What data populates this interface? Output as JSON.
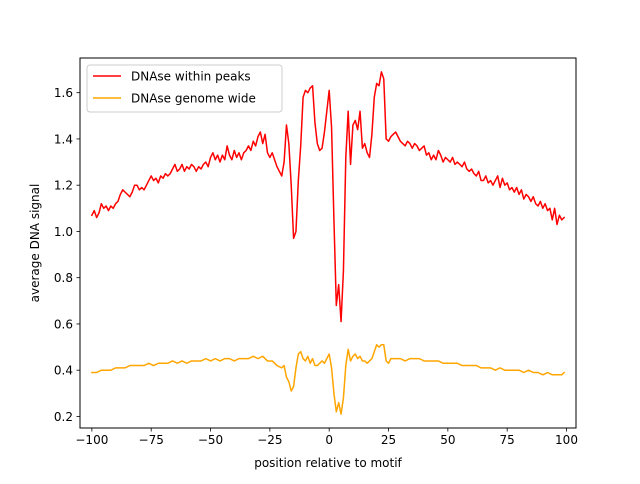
{
  "chart_data": {
    "type": "line",
    "title": "",
    "xlabel": "position relative to motif",
    "ylabel": "average DNA signal",
    "xlim": [
      -105,
      104
    ],
    "ylim": [
      0.15,
      1.75
    ],
    "xticks": [
      -100,
      -75,
      -50,
      -25,
      0,
      25,
      50,
      75,
      100
    ],
    "xtick_labels": [
      "−100",
      "−75",
      "−50",
      "−25",
      "0",
      "25",
      "50",
      "75",
      "100"
    ],
    "yticks": [
      0.2,
      0.4,
      0.6,
      0.8,
      1.0,
      1.2,
      1.4,
      1.6
    ],
    "ytick_labels": [
      "0.2",
      "0.4",
      "0.6",
      "0.8",
      "1.0",
      "1.2",
      "1.4",
      "1.6"
    ],
    "grid": false,
    "legend_position": "top-left",
    "series": [
      {
        "name": "DNAse within peaks",
        "color": "#ff0000",
        "points": [
          [
            -100,
            1.07
          ],
          [
            -99,
            1.09
          ],
          [
            -98,
            1.06
          ],
          [
            -97,
            1.08
          ],
          [
            -96,
            1.12
          ],
          [
            -95,
            1.1
          ],
          [
            -94,
            1.11
          ],
          [
            -93,
            1.09
          ],
          [
            -92,
            1.11
          ],
          [
            -91,
            1.1
          ],
          [
            -90,
            1.12
          ],
          [
            -89,
            1.13
          ],
          [
            -88,
            1.16
          ],
          [
            -87,
            1.18
          ],
          [
            -86,
            1.17
          ],
          [
            -85,
            1.16
          ],
          [
            -84,
            1.15
          ],
          [
            -83,
            1.17
          ],
          [
            -82,
            1.2
          ],
          [
            -81,
            1.2
          ],
          [
            -80,
            1.18
          ],
          [
            -79,
            1.19
          ],
          [
            -78,
            1.18
          ],
          [
            -77,
            1.2
          ],
          [
            -76,
            1.22
          ],
          [
            -75,
            1.24
          ],
          [
            -74,
            1.22
          ],
          [
            -73,
            1.23
          ],
          [
            -72,
            1.21
          ],
          [
            -71,
            1.24
          ],
          [
            -70,
            1.23
          ],
          [
            -69,
            1.25
          ],
          [
            -68,
            1.24
          ],
          [
            -67,
            1.25
          ],
          [
            -66,
            1.27
          ],
          [
            -65,
            1.29
          ],
          [
            -64,
            1.26
          ],
          [
            -63,
            1.27
          ],
          [
            -62,
            1.29
          ],
          [
            -61,
            1.26
          ],
          [
            -60,
            1.28
          ],
          [
            -59,
            1.27
          ],
          [
            -58,
            1.29
          ],
          [
            -57,
            1.28
          ],
          [
            -56,
            1.26
          ],
          [
            -55,
            1.28
          ],
          [
            -54,
            1.27
          ],
          [
            -53,
            1.29
          ],
          [
            -52,
            1.3
          ],
          [
            -51,
            1.28
          ],
          [
            -50,
            1.32
          ],
          [
            -49,
            1.34
          ],
          [
            -48,
            1.31
          ],
          [
            -47,
            1.33
          ],
          [
            -46,
            1.3
          ],
          [
            -45,
            1.33
          ],
          [
            -44,
            1.31
          ],
          [
            -43,
            1.37
          ],
          [
            -42,
            1.33
          ],
          [
            -41,
            1.31
          ],
          [
            -40,
            1.35
          ],
          [
            -39,
            1.32
          ],
          [
            -38,
            1.34
          ],
          [
            -37,
            1.31
          ],
          [
            -36,
            1.34
          ],
          [
            -35,
            1.35
          ],
          [
            -34,
            1.37
          ],
          [
            -33,
            1.35
          ],
          [
            -32,
            1.39
          ],
          [
            -31,
            1.37
          ],
          [
            -30,
            1.41
          ],
          [
            -29,
            1.43
          ],
          [
            -28,
            1.38
          ],
          [
            -27,
            1.42
          ],
          [
            -26,
            1.34
          ],
          [
            -25,
            1.32
          ],
          [
            -24,
            1.34
          ],
          [
            -23,
            1.31
          ],
          [
            -22,
            1.28
          ],
          [
            -21,
            1.26
          ],
          [
            -20,
            1.24
          ],
          [
            -19,
            1.3
          ],
          [
            -18,
            1.46
          ],
          [
            -17,
            1.38
          ],
          [
            -16,
            1.2
          ],
          [
            -15,
            0.97
          ],
          [
            -14,
            1.0
          ],
          [
            -13,
            1.22
          ],
          [
            -12,
            1.37
          ],
          [
            -11,
            1.58
          ],
          [
            -10,
            1.61
          ],
          [
            -9,
            1.6
          ],
          [
            -8,
            1.62
          ],
          [
            -7,
            1.63
          ],
          [
            -6,
            1.47
          ],
          [
            -5,
            1.38
          ],
          [
            -4,
            1.35
          ],
          [
            -3,
            1.36
          ],
          [
            -2,
            1.43
          ],
          [
            -1,
            1.52
          ],
          [
            0,
            1.61
          ],
          [
            1,
            1.45
          ],
          [
            2,
            1.05
          ],
          [
            3,
            0.68
          ],
          [
            4,
            0.77
          ],
          [
            5,
            0.61
          ],
          [
            6,
            0.83
          ],
          [
            7,
            1.32
          ],
          [
            8,
            1.52
          ],
          [
            9,
            1.29
          ],
          [
            10,
            1.46
          ],
          [
            11,
            1.48
          ],
          [
            12,
            1.44
          ],
          [
            13,
            1.52
          ],
          [
            14,
            1.36
          ],
          [
            15,
            1.38
          ],
          [
            16,
            1.34
          ],
          [
            17,
            1.32
          ],
          [
            18,
            1.42
          ],
          [
            19,
            1.58
          ],
          [
            20,
            1.64
          ],
          [
            21,
            1.63
          ],
          [
            22,
            1.69
          ],
          [
            23,
            1.66
          ],
          [
            24,
            1.4
          ],
          [
            25,
            1.39
          ],
          [
            26,
            1.41
          ],
          [
            27,
            1.42
          ],
          [
            28,
            1.43
          ],
          [
            29,
            1.41
          ],
          [
            30,
            1.39
          ],
          [
            31,
            1.38
          ],
          [
            32,
            1.37
          ],
          [
            33,
            1.39
          ],
          [
            34,
            1.38
          ],
          [
            35,
            1.36
          ],
          [
            36,
            1.38
          ],
          [
            37,
            1.37
          ],
          [
            38,
            1.35
          ],
          [
            39,
            1.36
          ],
          [
            40,
            1.37
          ],
          [
            41,
            1.33
          ],
          [
            42,
            1.34
          ],
          [
            43,
            1.31
          ],
          [
            44,
            1.33
          ],
          [
            45,
            1.31
          ],
          [
            46,
            1.35
          ],
          [
            47,
            1.33
          ],
          [
            48,
            1.3
          ],
          [
            49,
            1.32
          ],
          [
            50,
            1.31
          ],
          [
            51,
            1.3
          ],
          [
            52,
            1.32
          ],
          [
            53,
            1.29
          ],
          [
            54,
            1.3
          ],
          [
            55,
            1.29
          ],
          [
            56,
            1.28
          ],
          [
            57,
            1.3
          ],
          [
            58,
            1.27
          ],
          [
            59,
            1.26
          ],
          [
            60,
            1.27
          ],
          [
            61,
            1.25
          ],
          [
            62,
            1.24
          ],
          [
            63,
            1.26
          ],
          [
            64,
            1.22
          ],
          [
            65,
            1.22
          ],
          [
            66,
            1.24
          ],
          [
            67,
            1.21
          ],
          [
            68,
            1.22
          ],
          [
            69,
            1.2
          ],
          [
            70,
            1.22
          ],
          [
            71,
            1.24
          ],
          [
            72,
            1.19
          ],
          [
            73,
            1.23
          ],
          [
            74,
            1.2
          ],
          [
            75,
            1.21
          ],
          [
            76,
            1.18
          ],
          [
            77,
            1.19
          ],
          [
            78,
            1.17
          ],
          [
            79,
            1.19
          ],
          [
            80,
            1.16
          ],
          [
            81,
            1.18
          ],
          [
            82,
            1.14
          ],
          [
            83,
            1.16
          ],
          [
            84,
            1.15
          ],
          [
            85,
            1.13
          ],
          [
            86,
            1.15
          ],
          [
            87,
            1.12
          ],
          [
            88,
            1.11
          ],
          [
            89,
            1.13
          ],
          [
            90,
            1.1
          ],
          [
            91,
            1.12
          ],
          [
            92,
            1.09
          ],
          [
            93,
            1.1
          ],
          [
            94,
            1.05
          ],
          [
            95,
            1.1
          ],
          [
            96,
            1.03
          ],
          [
            97,
            1.07
          ],
          [
            98,
            1.05
          ],
          [
            99,
            1.06
          ]
        ]
      },
      {
        "name": "DNAse genome wide",
        "color": "#ffa500",
        "points": [
          [
            -100,
            0.39
          ],
          [
            -98,
            0.39
          ],
          [
            -96,
            0.4
          ],
          [
            -94,
            0.4
          ],
          [
            -92,
            0.4
          ],
          [
            -90,
            0.41
          ],
          [
            -88,
            0.41
          ],
          [
            -86,
            0.41
          ],
          [
            -84,
            0.42
          ],
          [
            -82,
            0.42
          ],
          [
            -80,
            0.42
          ],
          [
            -78,
            0.42
          ],
          [
            -76,
            0.43
          ],
          [
            -74,
            0.42
          ],
          [
            -72,
            0.43
          ],
          [
            -70,
            0.43
          ],
          [
            -68,
            0.43
          ],
          [
            -66,
            0.44
          ],
          [
            -64,
            0.43
          ],
          [
            -62,
            0.44
          ],
          [
            -60,
            0.43
          ],
          [
            -58,
            0.44
          ],
          [
            -56,
            0.44
          ],
          [
            -54,
            0.44
          ],
          [
            -52,
            0.45
          ],
          [
            -50,
            0.44
          ],
          [
            -48,
            0.45
          ],
          [
            -46,
            0.44
          ],
          [
            -44,
            0.45
          ],
          [
            -42,
            0.45
          ],
          [
            -40,
            0.44
          ],
          [
            -38,
            0.45
          ],
          [
            -36,
            0.45
          ],
          [
            -34,
            0.45
          ],
          [
            -32,
            0.46
          ],
          [
            -30,
            0.45
          ],
          [
            -28,
            0.46
          ],
          [
            -26,
            0.44
          ],
          [
            -24,
            0.44
          ],
          [
            -22,
            0.42
          ],
          [
            -20,
            0.41
          ],
          [
            -19,
            0.42
          ],
          [
            -18,
            0.37
          ],
          [
            -17,
            0.35
          ],
          [
            -16,
            0.31
          ],
          [
            -15,
            0.33
          ],
          [
            -14,
            0.41
          ],
          [
            -13,
            0.47
          ],
          [
            -12,
            0.48
          ],
          [
            -11,
            0.45
          ],
          [
            -10,
            0.44
          ],
          [
            -9,
            0.46
          ],
          [
            -8,
            0.43
          ],
          [
            -7,
            0.45
          ],
          [
            -6,
            0.42
          ],
          [
            -5,
            0.42
          ],
          [
            -4,
            0.43
          ],
          [
            -3,
            0.44
          ],
          [
            -2,
            0.43
          ],
          [
            -1,
            0.45
          ],
          [
            0,
            0.47
          ],
          [
            1,
            0.41
          ],
          [
            2,
            0.3
          ],
          [
            3,
            0.22
          ],
          [
            4,
            0.26
          ],
          [
            5,
            0.21
          ],
          [
            6,
            0.28
          ],
          [
            7,
            0.42
          ],
          [
            8,
            0.49
          ],
          [
            9,
            0.44
          ],
          [
            10,
            0.46
          ],
          [
            11,
            0.47
          ],
          [
            12,
            0.45
          ],
          [
            13,
            0.46
          ],
          [
            14,
            0.44
          ],
          [
            15,
            0.44
          ],
          [
            16,
            0.43
          ],
          [
            17,
            0.44
          ],
          [
            18,
            0.45
          ],
          [
            19,
            0.48
          ],
          [
            20,
            0.51
          ],
          [
            21,
            0.5
          ],
          [
            22,
            0.51
          ],
          [
            23,
            0.51
          ],
          [
            24,
            0.44
          ],
          [
            25,
            0.43
          ],
          [
            26,
            0.45
          ],
          [
            28,
            0.45
          ],
          [
            30,
            0.45
          ],
          [
            32,
            0.44
          ],
          [
            34,
            0.45
          ],
          [
            36,
            0.45
          ],
          [
            38,
            0.45
          ],
          [
            40,
            0.44
          ],
          [
            42,
            0.44
          ],
          [
            44,
            0.44
          ],
          [
            46,
            0.44
          ],
          [
            48,
            0.43
          ],
          [
            50,
            0.43
          ],
          [
            52,
            0.43
          ],
          [
            54,
            0.43
          ],
          [
            56,
            0.42
          ],
          [
            58,
            0.42
          ],
          [
            60,
            0.42
          ],
          [
            62,
            0.42
          ],
          [
            64,
            0.41
          ],
          [
            66,
            0.41
          ],
          [
            68,
            0.41
          ],
          [
            70,
            0.4
          ],
          [
            72,
            0.41
          ],
          [
            74,
            0.4
          ],
          [
            76,
            0.4
          ],
          [
            78,
            0.4
          ],
          [
            80,
            0.4
          ],
          [
            82,
            0.39
          ],
          [
            84,
            0.4
          ],
          [
            86,
            0.39
          ],
          [
            88,
            0.39
          ],
          [
            90,
            0.38
          ],
          [
            92,
            0.39
          ],
          [
            94,
            0.38
          ],
          [
            96,
            0.38
          ],
          [
            98,
            0.38
          ],
          [
            99,
            0.39
          ]
        ]
      }
    ]
  }
}
